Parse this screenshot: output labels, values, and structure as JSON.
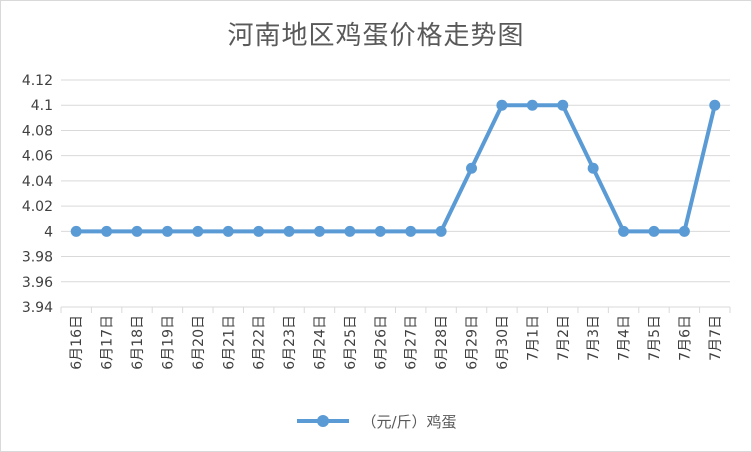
{
  "chart_data": {
    "type": "line",
    "title": "河南地区鸡蛋价格走势图",
    "categories": [
      "6月16日",
      "6月17日",
      "6月18日",
      "6月19日",
      "6月20日",
      "6月21日",
      "6月22日",
      "6月23日",
      "6月24日",
      "6月25日",
      "6月26日",
      "6月27日",
      "6月28日",
      "6月29日",
      "6月30日",
      "7月1日",
      "7月2日",
      "7月3日",
      "7月4日",
      "7月5日",
      "7月6日",
      "7月7日"
    ],
    "series": [
      {
        "name": "（元/斤）鸡蛋",
        "values": [
          4,
          4,
          4,
          4,
          4,
          4,
          4,
          4,
          4,
          4,
          4,
          4,
          4,
          4.05,
          4.1,
          4.1,
          4.1,
          4.05,
          4,
          4,
          4,
          4.1
        ],
        "color": "#5b9bd5"
      }
    ],
    "ylim": [
      3.94,
      4.12
    ],
    "yticks": [
      3.94,
      3.96,
      3.98,
      4,
      4.02,
      4.04,
      4.06,
      4.08,
      4.1,
      4.12
    ],
    "ytick_labels": [
      "3.94",
      "3.96",
      "3.98",
      "4",
      "4.02",
      "4.04",
      "4.06",
      "4.08",
      "4.1",
      "4.12"
    ],
    "xlabel": "",
    "ylabel": "",
    "grid": true,
    "legend_position": "bottom"
  }
}
